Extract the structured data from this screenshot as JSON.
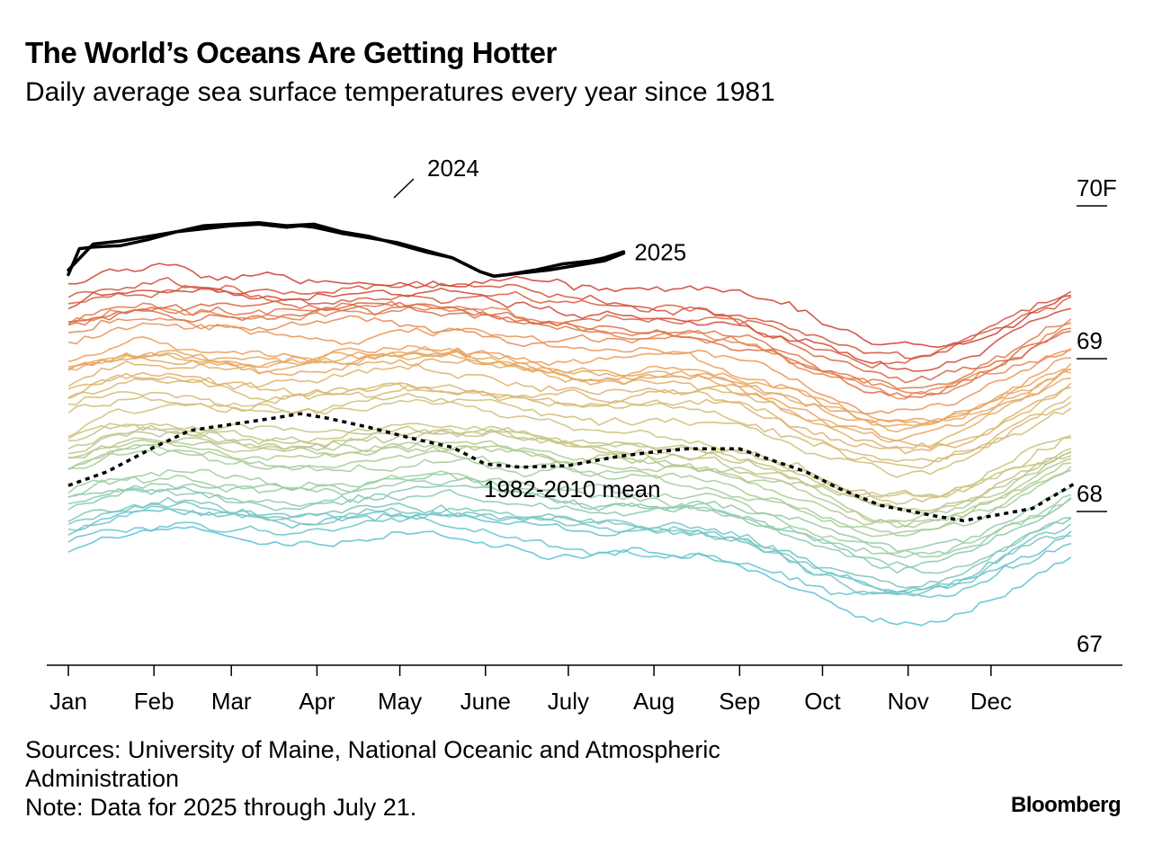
{
  "title": "The World’s Oceans Are Getting Hotter",
  "subtitle": "Daily average sea surface temperatures every year since 1981",
  "sources": "Sources: University of Maine, National Oceanic and Atmospheric Administration",
  "note": "Note: Data for 2025 through July 21.",
  "logo": "Bloomberg",
  "colors": {
    "warm": "#d0453a",
    "orange": "#eea35e",
    "tan": "#d2c27c",
    "sage": "#a3cfa0",
    "cool": "#5fc2d8",
    "highlight": "#000000"
  },
  "chart_data": {
    "type": "line",
    "x_label": "",
    "y_label": "",
    "ylim": [
      67,
      70.1
    ],
    "y_ticks": [
      {
        "value": 70,
        "label": "70F"
      },
      {
        "value": 69,
        "label": "69"
      },
      {
        "value": 68,
        "label": "68"
      },
      {
        "value": 67,
        "label": "67"
      }
    ],
    "months": [
      "Jan",
      "Feb",
      "Mar",
      "Apr",
      "May",
      "June",
      "July",
      "Aug",
      "Sep",
      "Oct",
      "Nov",
      "Dec"
    ],
    "month_start_days": [
      1,
      32,
      60,
      91,
      121,
      152,
      182,
      213,
      244,
      274,
      305,
      335
    ],
    "grid": false,
    "legend": "none (direct labels)",
    "highlighted_series": [
      {
        "name": "2024",
        "color": "#000000",
        "points": [
          [
            1,
            69.55
          ],
          [
            5,
            69.72
          ],
          [
            10,
            69.73
          ],
          [
            20,
            69.74
          ],
          [
            30,
            69.78
          ],
          [
            40,
            69.83
          ],
          [
            50,
            69.87
          ],
          [
            60,
            69.88
          ],
          [
            70,
            69.89
          ],
          [
            80,
            69.87
          ],
          [
            90,
            69.88
          ],
          [
            100,
            69.83
          ],
          [
            110,
            69.8
          ],
          [
            120,
            69.75
          ],
          [
            130,
            69.7
          ],
          [
            140,
            69.66
          ],
          [
            150,
            69.57
          ],
          [
            155,
            69.54
          ],
          [
            160,
            69.55
          ],
          [
            170,
            69.58
          ],
          [
            180,
            69.62
          ],
          [
            190,
            69.64
          ],
          [
            195,
            69.66
          ],
          [
            202,
            69.7
          ]
        ]
      },
      {
        "name": "2025",
        "color": "#000000",
        "points": [
          [
            1,
            69.58
          ],
          [
            10,
            69.75
          ],
          [
            20,
            69.77
          ],
          [
            30,
            69.8
          ],
          [
            40,
            69.83
          ],
          [
            50,
            69.85
          ],
          [
            60,
            69.87
          ],
          [
            70,
            69.88
          ],
          [
            80,
            69.86
          ],
          [
            85,
            69.87
          ],
          [
            90,
            69.86
          ],
          [
            100,
            69.82
          ],
          [
            110,
            69.79
          ],
          [
            120,
            69.76
          ],
          [
            130,
            69.71
          ],
          [
            140,
            69.66
          ],
          [
            150,
            69.57
          ],
          [
            155,
            69.54
          ],
          [
            165,
            69.56
          ],
          [
            175,
            69.58
          ],
          [
            185,
            69.61
          ],
          [
            195,
            69.64
          ],
          [
            202,
            69.69
          ]
        ]
      },
      {
        "name": "1982-2010 mean",
        "color": "#000000",
        "points": [
          [
            1,
            68.17
          ],
          [
            15,
            68.26
          ],
          [
            32,
            68.42
          ],
          [
            45,
            68.53
          ],
          [
            60,
            68.57
          ],
          [
            75,
            68.61
          ],
          [
            85,
            68.64
          ],
          [
            95,
            68.61
          ],
          [
            110,
            68.55
          ],
          [
            125,
            68.48
          ],
          [
            140,
            68.42
          ],
          [
            152,
            68.31
          ],
          [
            165,
            68.29
          ],
          [
            182,
            68.3
          ],
          [
            200,
            68.36
          ],
          [
            213,
            68.39
          ],
          [
            225,
            68.41
          ],
          [
            244,
            68.41
          ],
          [
            255,
            68.34
          ],
          [
            268,
            68.26
          ],
          [
            280,
            68.15
          ],
          [
            295,
            68.04
          ],
          [
            315,
            67.97
          ],
          [
            325,
            67.94
          ],
          [
            335,
            67.97
          ],
          [
            350,
            68.02
          ],
          [
            365,
            68.18
          ]
        ]
      }
    ],
    "annotations": [
      "2024",
      "2025",
      "1982-2010 mean"
    ]
  }
}
